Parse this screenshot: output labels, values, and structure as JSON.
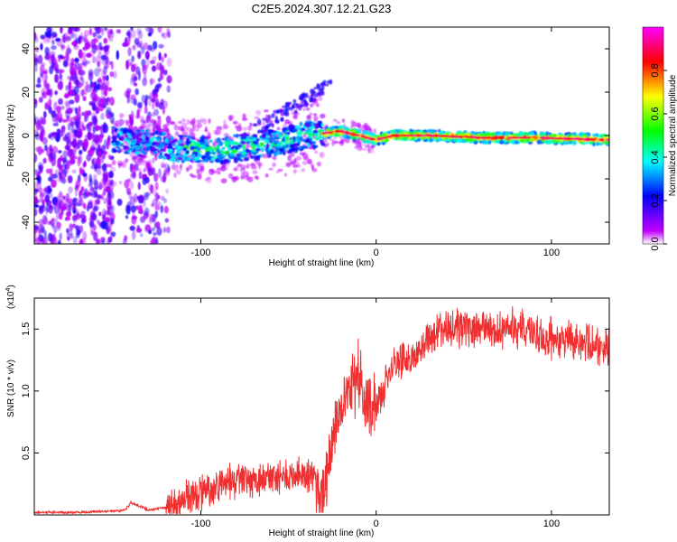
{
  "title": "C2E5.2024.307.12.21.G23",
  "chart_data": [
    {
      "type": "heatmap",
      "name": "spectrogram",
      "xlabel": "Height of straight line (km)",
      "ylabel": "Frequency (Hz)",
      "xlim": [
        -195,
        133
      ],
      "ylim": [
        -50,
        50
      ],
      "xticks": [
        -100,
        0,
        100
      ],
      "yticks": [
        -40,
        -20,
        0,
        20,
        40
      ],
      "colorbar": {
        "label": "Normalized spectral amplitude",
        "range": [
          0,
          1
        ],
        "ticks": [
          "0.0",
          "0.2",
          "0.4",
          "0.6",
          "0.8"
        ],
        "colors": [
          "#ffffff",
          "#c000ff",
          "#0000ff",
          "#00ffff",
          "#00ff00",
          "#ffff00",
          "#ff0000",
          "#ff00ff"
        ]
      },
      "trace": {
        "x": [
          -150,
          -130,
          -110,
          -90,
          -70,
          -55,
          -40,
          -30,
          -20,
          -10,
          0,
          10,
          30,
          60,
          90,
          133
        ],
        "y": [
          -2,
          -4,
          -6,
          -7,
          -5,
          -3,
          0,
          1,
          2,
          0,
          -2,
          0,
          0,
          -1,
          -1,
          -2
        ]
      }
    },
    {
      "type": "line",
      "name": "snr",
      "xlabel": "Height of straight line (km)",
      "ylabel": "SNR (10 * v/v)",
      "yscale_label": "(x10",
      "yscale_exp": "4",
      "xlim": [
        -195,
        133
      ],
      "ylim": [
        0,
        1.75
      ],
      "xticks": [
        -100,
        0,
        100
      ],
      "yticks": [
        "0.5",
        "1.0",
        "1.5"
      ],
      "color": "#f03030",
      "x": [
        -195,
        -170,
        -150,
        -143,
        -140,
        -130,
        -120,
        -110,
        -100,
        -90,
        -80,
        -70,
        -60,
        -50,
        -40,
        -35,
        -32,
        -30,
        -25,
        -20,
        -15,
        -10,
        -5,
        0,
        5,
        10,
        15,
        20,
        25,
        30,
        40,
        50,
        60,
        70,
        80,
        90,
        100,
        110,
        120,
        133
      ],
      "y": [
        0.02,
        0.02,
        0.03,
        0.04,
        0.1,
        0.04,
        0.06,
        0.12,
        0.18,
        0.24,
        0.27,
        0.28,
        0.3,
        0.3,
        0.33,
        0.3,
        0.05,
        0.15,
        0.6,
        0.85,
        1.05,
        1.1,
        0.9,
        0.9,
        1.05,
        1.2,
        1.25,
        1.25,
        1.3,
        1.45,
        1.5,
        1.52,
        1.5,
        1.48,
        1.5,
        1.45,
        1.42,
        1.42,
        1.38,
        1.35
      ]
    }
  ]
}
